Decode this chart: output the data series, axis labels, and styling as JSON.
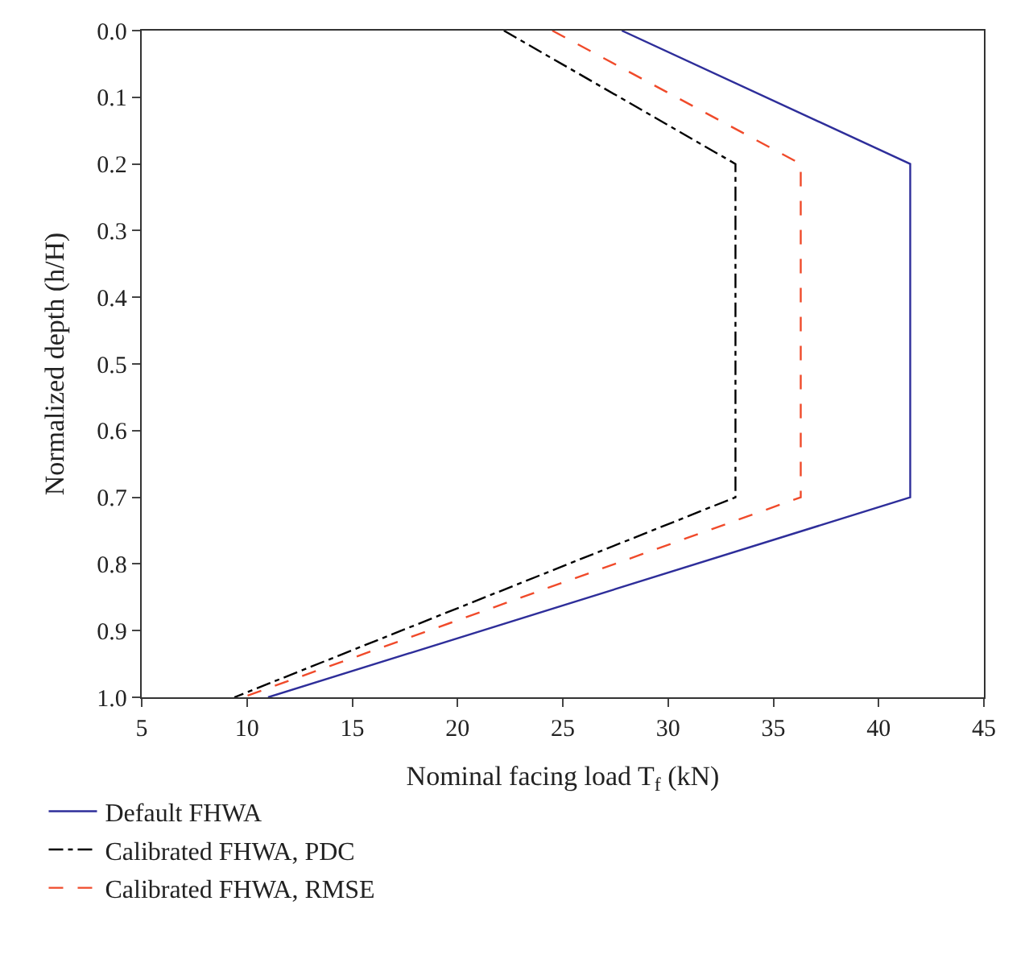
{
  "chart_data": {
    "type": "line",
    "xlabel": "Nominal facing load T$_{f}$ (kN)",
    "ylabel": "Normalized depth (h/H)",
    "xlim": [
      5,
      45
    ],
    "xticks": [
      5,
      10,
      15,
      20,
      25,
      30,
      35,
      40,
      45
    ],
    "ylim": [
      1.0,
      0.0
    ],
    "yticks": [
      {
        "value": 0,
        "label": "0.0"
      },
      {
        "value": 0.1,
        "label": "0.1"
      },
      {
        "value": 0.2,
        "label": "0.2"
      },
      {
        "value": 0.3,
        "label": "0.3"
      },
      {
        "value": 0.4,
        "label": "0.4"
      },
      {
        "value": 0.5,
        "label": "0.5"
      },
      {
        "value": 0.6,
        "label": "0.6"
      },
      {
        "value": 0.7,
        "label": "0.7"
      },
      {
        "value": 0.8,
        "label": "0.8"
      },
      {
        "value": 0.9,
        "label": "0.9"
      },
      {
        "value": 1.0,
        "label": "1.0"
      }
    ],
    "series": [
      {
        "name": "Default FHWA",
        "color": "#2e2e9a",
        "line_style": "solid",
        "x": [
          27.8,
          41.5,
          41.5,
          11.0
        ],
        "values": [
          0,
          0.2,
          0.7,
          1.0
        ]
      },
      {
        "name": "Calibrated FHWA, PDC",
        "color": "#000000",
        "line_style": "dashdot",
        "x": [
          22.2,
          33.2,
          33.2,
          9.4
        ],
        "values": [
          0,
          0.2,
          0.7,
          1.0
        ]
      },
      {
        "name": "Calibrated FHWA, RMSE",
        "color": "#f04a2a",
        "line_style": "dashed",
        "x": [
          24.5,
          36.3,
          36.3,
          9.8
        ],
        "values": [
          0,
          0.2,
          0.7,
          1.0
        ]
      }
    ],
    "legend": "bottom"
  }
}
